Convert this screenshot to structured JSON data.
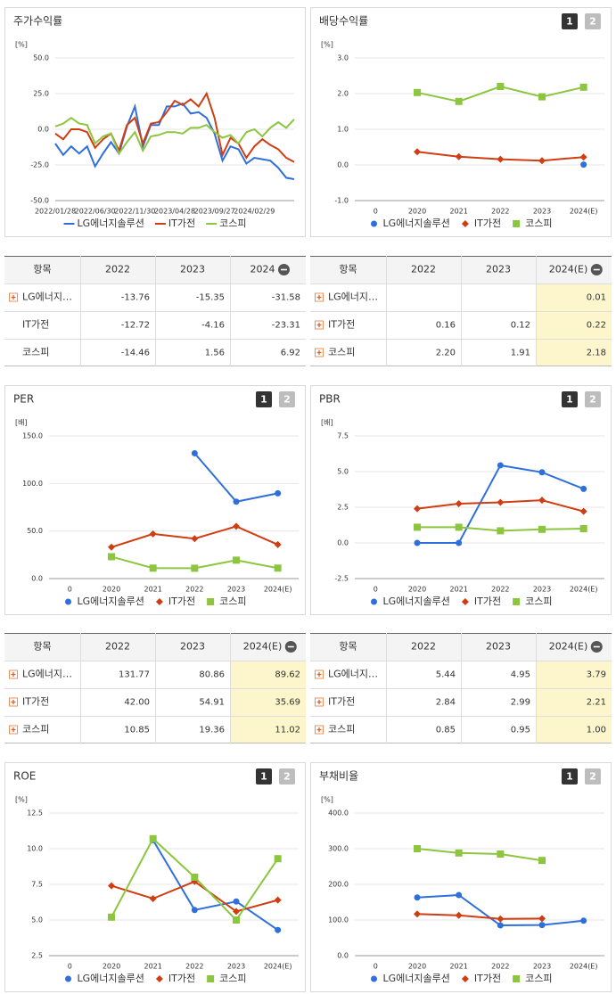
{
  "chart_data": [
    {
      "type": "line",
      "title": "주가수익률",
      "unit": "[%]",
      "markers": false,
      "legend": "bottom",
      "grid": true,
      "categories": [
        "2022/01/28",
        null,
        null,
        null,
        null,
        "2022/06/30",
        null,
        null,
        null,
        null,
        "2022/11/30",
        null,
        null,
        null,
        null,
        "2023/04/28",
        null,
        null,
        null,
        null,
        "2023/09/27",
        null,
        null,
        null,
        null,
        "2024/02/29",
        null,
        null,
        null,
        null,
        null
      ],
      "ylim": [
        -50,
        50
      ],
      "yticks": [
        {
          "value": -50,
          "label": "-50.0"
        },
        {
          "value": -25,
          "label": "-25.0"
        },
        {
          "value": 0,
          "label": "0.0"
        },
        {
          "value": 25,
          "label": "25.0"
        },
        {
          "value": 50,
          "label": "50.0"
        }
      ],
      "series": [
        {
          "name": "LG에너지솔루션",
          "color": "#2f6fdc",
          "values": [
            -10,
            -18,
            -12,
            -17,
            -12,
            -26,
            -17,
            -9,
            -17,
            2,
            16,
            -12,
            3,
            3,
            16,
            16,
            18,
            11,
            12,
            8,
            -3,
            -22,
            -12,
            -14,
            -24,
            -20,
            -21,
            -22,
            -27,
            -34,
            -35
          ]
        },
        {
          "name": "IT가전",
          "color": "#cf3d12",
          "values": [
            -3,
            -7,
            0,
            0,
            -2,
            -13,
            -7,
            -3,
            -15,
            3,
            8,
            -10,
            4,
            5,
            12,
            20,
            17,
            21,
            16,
            25,
            8,
            -18,
            -6,
            -10,
            -20,
            -12,
            -7,
            -11,
            -14,
            -20,
            -23
          ]
        },
        {
          "name": "코스피",
          "color": "#8cc63f",
          "values": [
            2,
            4,
            8,
            4,
            3,
            -10,
            -5,
            -3,
            -17,
            -9,
            -2,
            -15,
            -5,
            -4,
            -2,
            -2,
            -3,
            1,
            1,
            3,
            -2,
            -6,
            -4,
            -10,
            -2,
            0,
            -5,
            1,
            5,
            1,
            7
          ]
        }
      ]
    },
    {
      "type": "line",
      "title": "배당수익률",
      "unit": "[%]",
      "pages": [
        "1",
        "2"
      ],
      "markers": true,
      "legend": "bottom",
      "grid": true,
      "categories": [
        "0",
        "2020",
        "2021",
        "2022",
        "2023",
        "2024(E)"
      ],
      "ylim": [
        -1,
        3
      ],
      "yticks": [
        {
          "value": -1,
          "label": "-1.0"
        },
        {
          "value": 0,
          "label": "0.0"
        },
        {
          "value": 1,
          "label": "1.0"
        },
        {
          "value": 2,
          "label": "2.0"
        },
        {
          "value": 3,
          "label": "3.0"
        }
      ],
      "series": [
        {
          "name": "LG에너지솔루션",
          "color": "#2f6fdc",
          "marker": "circle",
          "values": [
            null,
            null,
            null,
            null,
            null,
            0.01
          ]
        },
        {
          "name": "IT가전",
          "color": "#cf3d12",
          "marker": "diamond",
          "values": [
            null,
            0.37,
            0.23,
            0.16,
            0.12,
            0.22
          ]
        },
        {
          "name": "코스피",
          "color": "#8cc63f",
          "marker": "square",
          "values": [
            null,
            2.03,
            1.78,
            2.2,
            1.91,
            2.18
          ]
        }
      ]
    },
    {
      "type": "line",
      "title": "PER",
      "unit": "[배]",
      "pages": [
        "1",
        "2"
      ],
      "markers": true,
      "legend": "bottom",
      "grid": true,
      "categories": [
        "0",
        "2020",
        "2021",
        "2022",
        "2023",
        "2024(E)"
      ],
      "ylim": [
        0,
        150
      ],
      "yticks": [
        {
          "value": 0,
          "label": "0.0"
        },
        {
          "value": 50,
          "label": "50.0"
        },
        {
          "value": 100,
          "label": "100.0"
        },
        {
          "value": 150,
          "label": "150.0"
        }
      ],
      "series": [
        {
          "name": "LG에너지솔루션",
          "color": "#2f6fdc",
          "marker": "circle",
          "values": [
            null,
            null,
            null,
            131.77,
            80.86,
            89.62
          ]
        },
        {
          "name": "IT가전",
          "color": "#cf3d12",
          "marker": "diamond",
          "values": [
            null,
            33,
            47,
            42.0,
            54.91,
            35.69
          ]
        },
        {
          "name": "코스피",
          "color": "#8cc63f",
          "marker": "square",
          "values": [
            null,
            23,
            11,
            10.85,
            19.36,
            11.02
          ]
        }
      ]
    },
    {
      "type": "line",
      "title": "PBR",
      "unit": "[배]",
      "pages": [
        "1",
        "2"
      ],
      "markers": true,
      "legend": "bottom",
      "grid": true,
      "categories": [
        "0",
        "2020",
        "2021",
        "2022",
        "2023",
        "2024(E)"
      ],
      "ylim": [
        -2.5,
        7.5
      ],
      "yticks": [
        {
          "value": -2.5,
          "label": "-2.5"
        },
        {
          "value": 0,
          "label": "0.0"
        },
        {
          "value": 2.5,
          "label": "2.5"
        },
        {
          "value": 5,
          "label": "5.0"
        },
        {
          "value": 7.5,
          "label": "7.5"
        }
      ],
      "series": [
        {
          "name": "LG에너지솔루션",
          "color": "#2f6fdc",
          "marker": "circle",
          "values": [
            null,
            0,
            0,
            5.44,
            4.95,
            3.79
          ]
        },
        {
          "name": "IT가전",
          "color": "#cf3d12",
          "marker": "diamond",
          "values": [
            null,
            2.4,
            2.75,
            2.84,
            2.99,
            2.21
          ]
        },
        {
          "name": "코스피",
          "color": "#8cc63f",
          "marker": "square",
          "values": [
            null,
            1.1,
            1.1,
            0.85,
            0.95,
            1.0
          ]
        }
      ]
    },
    {
      "type": "line",
      "title": "ROE",
      "unit": "[%]",
      "pages": [
        "1",
        "2"
      ],
      "markers": true,
      "legend": "bottom",
      "grid": true,
      "categories": [
        "0",
        "2020",
        "2021",
        "2022",
        "2023",
        "2024(E)"
      ],
      "ylim": [
        2.5,
        12.5
      ],
      "yticks": [
        2.5,
        {
          "value": 5,
          "label": "5.0"
        },
        7.5,
        {
          "value": 10,
          "label": "10.0"
        },
        12.5
      ],
      "series": [
        {
          "name": "LG에너지솔루션",
          "color": "#2f6fdc",
          "marker": "circle",
          "values": [
            null,
            null,
            10.6,
            5.7,
            6.3,
            4.3
          ]
        },
        {
          "name": "IT가전",
          "color": "#cf3d12",
          "marker": "diamond",
          "values": [
            null,
            7.4,
            6.5,
            7.7,
            5.6,
            6.4
          ]
        },
        {
          "name": "코스피",
          "color": "#8cc63f",
          "marker": "square",
          "values": [
            null,
            5.2,
            10.7,
            8.0,
            5.0,
            9.3
          ]
        }
      ]
    },
    {
      "type": "line",
      "title": "부채비율",
      "unit": "[%]",
      "pages": [
        "1",
        "2"
      ],
      "markers": true,
      "legend": "bottom",
      "grid": true,
      "categories": [
        "0",
        "2020",
        "2021",
        "2022",
        "2023",
        "2024(E)"
      ],
      "ylim": [
        0,
        400
      ],
      "yticks": [
        {
          "value": 0,
          "label": "0.0"
        },
        {
          "value": 100,
          "label": "100.0"
        },
        {
          "value": 200,
          "label": "200.0"
        },
        {
          "value": 300,
          "label": "300.0"
        },
        {
          "value": 400,
          "label": "400.0"
        }
      ],
      "series": [
        {
          "name": "LG에너지솔루션",
          "color": "#2f6fdc",
          "marker": "circle",
          "values": [
            null,
            163,
            170,
            85,
            86,
            98
          ]
        },
        {
          "name": "IT가전",
          "color": "#cf3d12",
          "marker": "diamond",
          "values": [
            null,
            117,
            113,
            103,
            104,
            null
          ]
        },
        {
          "name": "코스피",
          "color": "#8cc63f",
          "marker": "square",
          "values": [
            null,
            300,
            288,
            285,
            267,
            null
          ]
        }
      ]
    }
  ],
  "tables": [
    {
      "header": [
        "항목",
        "2022",
        "2023",
        "2024"
      ],
      "highlight_last": false,
      "expandable": [
        true,
        false,
        false
      ],
      "rows": [
        [
          "LG에너지…",
          "-13.76",
          "-15.35",
          "-31.58"
        ],
        [
          "IT가전",
          "-12.72",
          "-4.16",
          "-23.31"
        ],
        [
          "코스피",
          "-14.46",
          "1.56",
          "6.92"
        ]
      ]
    },
    {
      "header": [
        "항목",
        "2022",
        "2023",
        "2024(E)"
      ],
      "highlight_last": true,
      "expandable": [
        true,
        true,
        true
      ],
      "rows": [
        [
          "LG에너지…",
          null,
          null,
          "0.01"
        ],
        [
          "IT가전",
          "0.16",
          "0.12",
          "0.22"
        ],
        [
          "코스피",
          "2.20",
          "1.91",
          "2.18"
        ]
      ]
    },
    {
      "header": [
        "항목",
        "2022",
        "2023",
        "2024(E)"
      ],
      "highlight_last": true,
      "expandable": [
        true,
        true,
        true
      ],
      "rows": [
        [
          "LG에너지…",
          "131.77",
          "80.86",
          "89.62"
        ],
        [
          "IT가전",
          "42.00",
          "54.91",
          "35.69"
        ],
        [
          "코스피",
          "10.85",
          "19.36",
          "11.02"
        ]
      ]
    },
    {
      "header": [
        "항목",
        "2022",
        "2023",
        "2024(E)"
      ],
      "highlight_last": true,
      "expandable": [
        true,
        true,
        true
      ],
      "rows": [
        [
          "LG에너지…",
          "5.44",
          "4.95",
          "3.79"
        ],
        [
          "IT가전",
          "2.84",
          "2.99",
          "2.21"
        ],
        [
          "코스피",
          "0.85",
          "0.95",
          "1.00"
        ]
      ]
    }
  ]
}
